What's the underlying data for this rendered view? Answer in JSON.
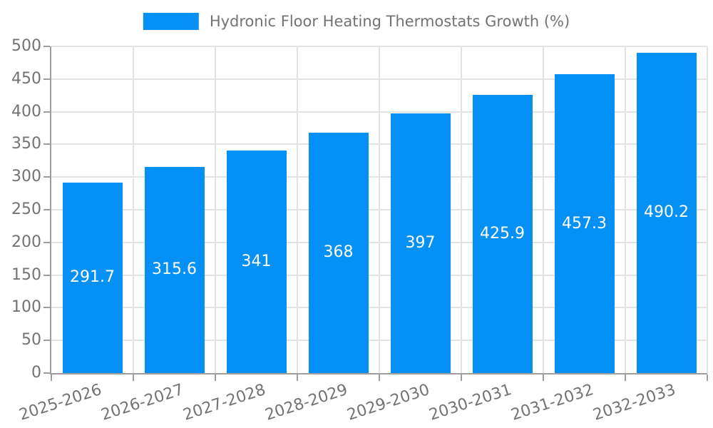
{
  "chart_data": {
    "type": "bar",
    "title": "Hydronic Floor Heating Thermostats Growth (%)",
    "legend": {
      "label": "Hydronic Floor Heating Thermostats Growth (%)",
      "position": "top-center"
    },
    "categories": [
      "2025-2026",
      "2026-2027",
      "2027-2028",
      "2028-2029",
      "2029-2030",
      "2030-2031",
      "2031-2032",
      "2032-2033"
    ],
    "values": [
      291.7,
      315.6,
      341,
      368,
      397,
      425.9,
      457.3,
      490.2
    ],
    "value_labels": [
      "291.7",
      "315.6",
      "341",
      "368",
      "397",
      "425.9",
      "457.3",
      "490.2"
    ],
    "xlabel": "",
    "ylabel": "",
    "ylim": [
      0,
      500
    ],
    "ytick_step": 50,
    "grid": true,
    "xtick_rotation_deg": -18,
    "colors": {
      "bar": "#0590f5",
      "axis": "#9e9e9e",
      "grid": "#e3e3e3",
      "text": "#737373",
      "value_label": "#ffffff",
      "background": "#ffffff"
    }
  }
}
